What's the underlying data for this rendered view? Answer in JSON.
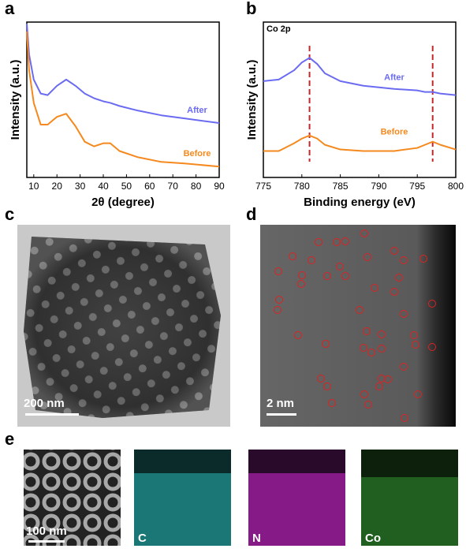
{
  "chart_data": [
    {
      "type": "line",
      "panel": "a",
      "xlabel": "2θ (degree)",
      "ylabel": "Intensity (a.u.)",
      "x": [
        7,
        8,
        10,
        13,
        16,
        20,
        24,
        28,
        32,
        36,
        40,
        43,
        47,
        55,
        65,
        75,
        90
      ],
      "series": [
        {
          "name": "After",
          "color": "#6b6bf2",
          "values": [
            99,
            79,
            63,
            54,
            53,
            59,
            63,
            59,
            54,
            51,
            49,
            48,
            46,
            43,
            40,
            38,
            35
          ]
        },
        {
          "name": "Before",
          "color": "#f5891e",
          "values": [
            94,
            69,
            48,
            34,
            34,
            39,
            41,
            33,
            23,
            20,
            22,
            22,
            17,
            13,
            10,
            9,
            7
          ]
        }
      ],
      "xlim": [
        7,
        90
      ],
      "xticks": [
        10,
        20,
        30,
        40,
        50,
        60,
        70,
        80,
        90
      ],
      "ylim": [
        0,
        100
      ]
    },
    {
      "type": "line",
      "panel": "b",
      "xlabel": "Binding energy (eV)",
      "ylabel": "Intensity (a.u.)",
      "annotation": "Co 2p",
      "x": [
        775,
        777,
        779,
        780,
        781,
        782,
        783,
        785,
        788,
        792,
        795,
        796,
        797,
        798,
        800
      ],
      "series": [
        {
          "name": "After",
          "color": "#6b6bf2",
          "values": [
            62,
            63,
            69,
            74,
            77,
            73,
            67,
            62,
            59,
            57,
            56,
            55,
            55,
            54,
            53
          ]
        },
        {
          "name": "Before",
          "color": "#f5891e",
          "values": [
            17,
            17,
            22,
            25,
            27,
            25,
            21,
            18,
            17,
            17,
            19,
            21,
            23,
            21,
            18
          ]
        }
      ],
      "reference_lines": [
        781,
        797
      ],
      "reference_color": "#c0282b",
      "xlim": [
        775,
        800
      ],
      "xticks": [
        775,
        780,
        785,
        790,
        795,
        800
      ],
      "ylim": [
        0,
        100
      ]
    }
  ],
  "panels": {
    "c": {
      "label": "c",
      "scale_bar": "200 nm"
    },
    "d": {
      "label": "d",
      "scale_bar": "2 nm"
    },
    "e": {
      "label": "e",
      "scale_bar": "100 nm",
      "maps": [
        "C",
        "N",
        "Co"
      ]
    }
  }
}
